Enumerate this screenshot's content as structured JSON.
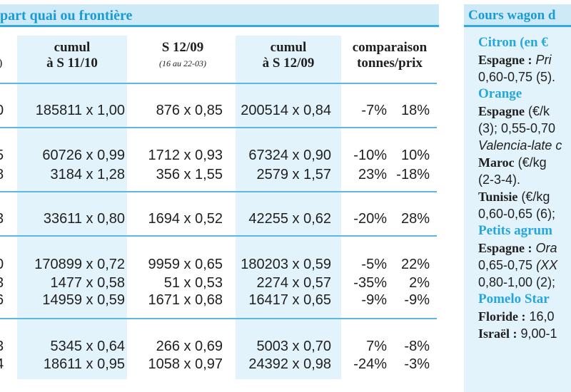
{
  "left_title": "part quai ou frontière",
  "columns": [
    {
      "title_l1": "cumul",
      "title_l2": "à S 11/10",
      "sub": ""
    },
    {
      "title_l1": "S 12/09",
      "title_l2": "",
      "sub": "(16 au 22-03)"
    },
    {
      "title_l1": "cumul",
      "title_l2": "à S 12/09",
      "sub": ""
    },
    {
      "title_l1": "comparaison",
      "title_l2": "tonnes/prix",
      "sub": ""
    }
  ],
  "edge_mark": ")",
  "rows": [
    {
      "edge": "0",
      "c1": "185811 x 1,00",
      "c2": "876 x 0,85",
      "c3": "200514 x 0,84",
      "c4": "-7%",
      "c5": "18%"
    },
    {
      "edge": "5",
      "c1": "60726 x 0,99",
      "c2": "1712 x 0,93",
      "c3": "67324 x 0,90",
      "c4": "-10%",
      "c5": "10%"
    },
    {
      "edge": "8",
      "c1": "3184 x 1,28",
      "c2": "356 x 1,55",
      "c3": "2579 x 1,57",
      "c4": "23%",
      "c5": "-18%"
    },
    {
      "edge": "3",
      "c1": "33611 x 0,80",
      "c2": "1694 x 0,52",
      "c3": "42255 x 0,62",
      "c4": "-20%",
      "c5": "28%"
    },
    {
      "edge": "0",
      "c1": "170899 x 0,72",
      "c2": "9959 x 0,65",
      "c3": "180203 x 0,59",
      "c4": "-5%",
      "c5": "22%"
    },
    {
      "edge": "3",
      "c1": "1477 x 0,58",
      "c2": "51 x 0,53",
      "c3": "2274 x 0,57",
      "c4": "-35%",
      "c5": "2%"
    },
    {
      "edge": "6",
      "c1": "14959 x 0,59",
      "c2": "1671 x 0,68",
      "c3": "16417 x 0,65",
      "c4": "-9%",
      "c5": "-9%"
    },
    {
      "edge": "3",
      "c1": "5345 x 0,64",
      "c2": "266 x 0,69",
      "c3": "5003 x 0,70",
      "c4": "7%",
      "c5": "-8%"
    },
    {
      "edge": "4",
      "c1": "18611 x 0,95",
      "c2": "1058 x 0,97",
      "c3": "24392 x 0,98",
      "c4": "-24%",
      "c5": "-3%"
    }
  ],
  "right_title": "Cours wagon d",
  "right_lines": {
    "l1": "Citron (en €",
    "l2_b": "Espagne :",
    "l2_i": "Pri",
    "l3": "0,60-0,75 (5).",
    "l4": "Orange",
    "l5_b": "Espagne",
    "l5": "(€/k",
    "l6": "(3); 0,55-0,70",
    "l7_i": "Valencia-late c",
    "l8_b": "Maroc",
    "l8": "(€/kg",
    "l9": "(2-3-4).",
    "l10_b": "Tunisie",
    "l10": "(€/kg",
    "l11": "0,60-0,65 (6);",
    "l12": "Petits agrum",
    "l13_b": "Espagne :",
    "l13_i": "Ora",
    "l14": "0,65-0,75",
    "l14_i": "(XX",
    "l15": "0,80-1,00 (2);",
    "l16": "Pomelo Star",
    "l17_b": "Floride :",
    "l17": "16,0",
    "l18_b": "Israël :",
    "l18": "9,00-1"
  }
}
